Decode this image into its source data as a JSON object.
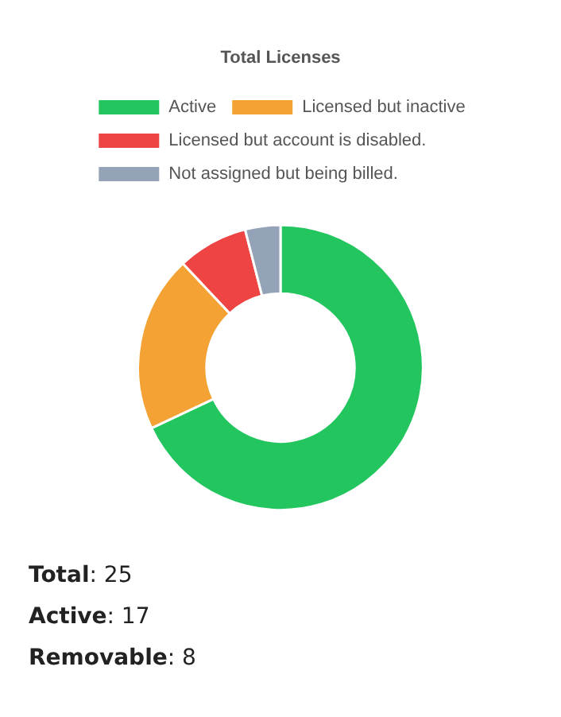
{
  "chart_data": {
    "type": "donut",
    "title": "Total Licenses",
    "categories": [
      "Active",
      "Licensed but inactive",
      "Licensed but account is disabled.",
      "Not assigned but being billed."
    ],
    "values": [
      68,
      20,
      8,
      4
    ],
    "colors": [
      "#22c55e",
      "#f3a233",
      "#ef4444",
      "#94a3b8"
    ],
    "legend": "top",
    "annotations": [
      "Total: 25",
      "Active: 17",
      "Removable: 8"
    ]
  }
}
